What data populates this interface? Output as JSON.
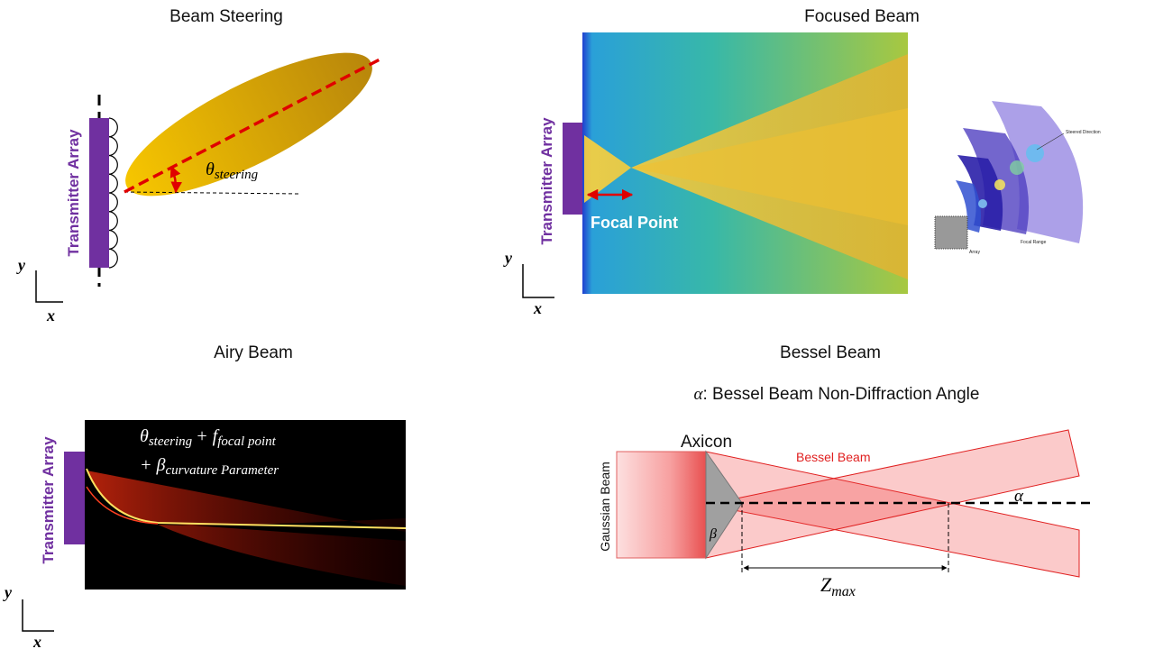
{
  "beam_steering": {
    "title": "Beam Steering",
    "array_label": "Transmitter Array",
    "angle": {
      "symbol": "θ",
      "subscript": "steering"
    },
    "axis_y": "y",
    "axis_x": "x"
  },
  "focused_beam": {
    "title": "Focused Beam",
    "array_label": "Transmitter Array",
    "focal_label": "Focal Point",
    "inset_labels": [
      "Steered Direction",
      "Focal Range",
      "Array"
    ],
    "axis_y": "y",
    "axis_x": "x"
  },
  "airy_beam": {
    "title": "Airy Beam",
    "array_label": "Transmitter Array",
    "formula": [
      {
        "symbol": "θ",
        "subscript": "steering"
      },
      {
        "symbol": "+ f",
        "subscript": "focal point"
      },
      {
        "symbol": "+ β",
        "subscript": "curvature Parameter"
      }
    ],
    "axis_y": "y",
    "axis_x": "x"
  },
  "bessel_beam": {
    "title": "Bessel Beam",
    "caption_symbol": "α",
    "caption": ": Bessel Beam Non-Diffraction Angle",
    "axicon": "Axicon",
    "beam_label": "Bessel Beam",
    "gaussian_label": "Gaussian Beam",
    "beta": "β",
    "alpha": "α",
    "distance": {
      "symbol": "Z",
      "subscript": "max"
    }
  }
}
